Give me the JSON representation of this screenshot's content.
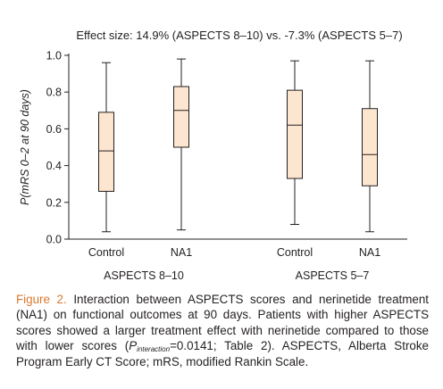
{
  "chart_data": {
    "type": "box",
    "title": "Effect size: 14.9% (ASPECTS 8–10) vs. -7.3% (ASPECTS 5–7)",
    "ylabel": "P(mRS 0–2 at 90 days)",
    "ylim": [
      0.0,
      1.0
    ],
    "yticks": [
      "0.0",
      "0.2",
      "0.4",
      "0.6",
      "0.8",
      "1.0"
    ],
    "categories": [
      "Control",
      "NA1",
      "Control",
      "NA1"
    ],
    "groups": [
      {
        "name": "ASPECTS 8–10",
        "members": [
          0,
          1
        ]
      },
      {
        "name": "ASPECTS 5–7",
        "members": [
          2,
          3
        ]
      }
    ],
    "boxes": [
      {
        "category": "Control",
        "group": "ASPECTS 8–10",
        "min": 0.04,
        "q1": 0.26,
        "median": 0.48,
        "q3": 0.69,
        "max": 0.96
      },
      {
        "category": "NA1",
        "group": "ASPECTS 8–10",
        "min": 0.05,
        "q1": 0.5,
        "median": 0.7,
        "q3": 0.83,
        "max": 0.98
      },
      {
        "category": "Control",
        "group": "ASPECTS 5–7",
        "min": 0.08,
        "q1": 0.33,
        "median": 0.62,
        "q3": 0.81,
        "max": 0.97
      },
      {
        "category": "NA1",
        "group": "ASPECTS 5–7",
        "min": 0.04,
        "q1": 0.29,
        "median": 0.46,
        "q3": 0.71,
        "max": 0.97
      }
    ],
    "box_fill": "#fde6cf",
    "box_stroke": "#231f20",
    "grid": false
  },
  "caption": {
    "label": "Figure 2.",
    "text_1": " Interaction between ASPECTS scores and nerinetide treatment (NA1) on functional outcomes at 90 days. Patients with higher ASPECTS scores showed a larger treatment effect with nerinetide compared to those with lower scores (",
    "p_letter": "P",
    "p_subscript": "interaction",
    "text_2": "=0.0141; Table 2). ASPECTS, Alberta Stroke Program Early CT Score; mRS, modified Rankin Scale."
  },
  "colors": {
    "figure_label": "#d9782f",
    "text": "#231f20"
  }
}
